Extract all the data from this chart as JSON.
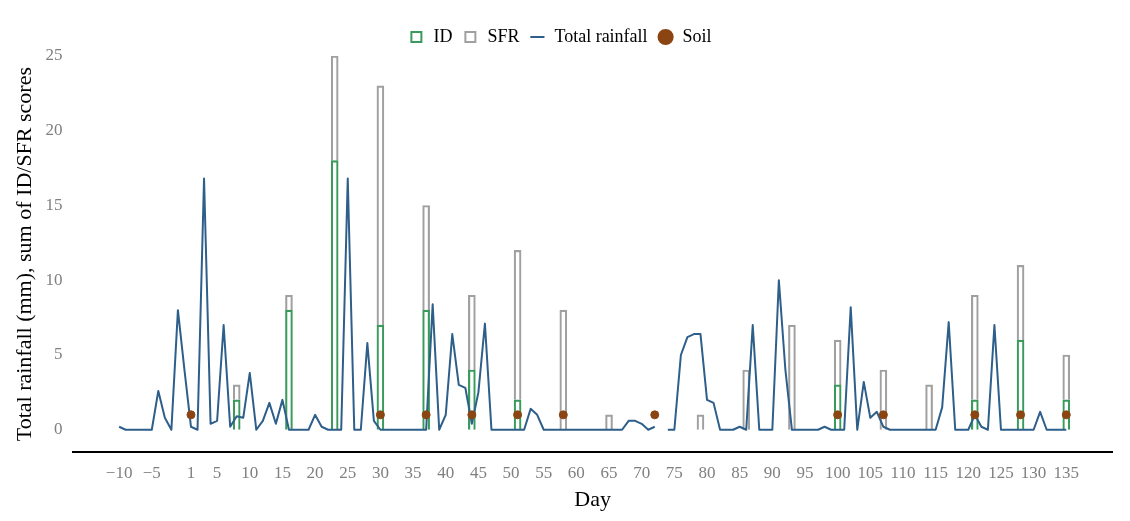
{
  "chart_data": {
    "type": "bar",
    "xlabel": "Day",
    "ylabel": "Total rainfall (mm), sum of ID/SFR scores",
    "stacked": true,
    "legend": "top",
    "grid": false,
    "xlim": [
      -17,
      142
    ],
    "ylim": [
      -1.5,
      25
    ],
    "xticks": [
      {
        "value": -10,
        "label": "−10"
      },
      {
        "value": -5,
        "label": "−5"
      },
      1,
      5,
      10,
      15,
      20,
      25,
      30,
      35,
      40,
      45,
      50,
      55,
      60,
      65,
      70,
      75,
      80,
      85,
      90,
      95,
      100,
      105,
      110,
      115,
      120,
      125,
      130,
      135
    ],
    "yticks": [
      0,
      5,
      10,
      15,
      20,
      25
    ],
    "series": [
      {
        "name": "ID",
        "color": "#3a9a5b",
        "x": [
          1,
          8,
          16,
          23,
          30,
          37,
          44,
          51,
          58,
          65,
          72,
          79,
          86,
          93,
          100,
          107,
          114,
          121,
          128,
          135
        ],
        "values": [
          0,
          2,
          8,
          18,
          7,
          8,
          4,
          2,
          0,
          0,
          0,
          0,
          0,
          0,
          3,
          0,
          0,
          2,
          6,
          2
        ]
      },
      {
        "name": "SFR",
        "color": "#a0a0a0",
        "x": [
          1,
          8,
          16,
          23,
          30,
          37,
          44,
          51,
          58,
          65,
          72,
          79,
          86,
          93,
          100,
          107,
          114,
          121,
          128,
          135
        ],
        "values": [
          0,
          1,
          1,
          7,
          16,
          7,
          5,
          10,
          8,
          1,
          0,
          1,
          4,
          7,
          3,
          4,
          3,
          7,
          5,
          3
        ]
      },
      {
        "name": "Total rainfall",
        "type": "line",
        "color": "#2e5f8a",
        "x": [
          -10,
          -9,
          -5,
          -4,
          -3,
          -2,
          -1,
          0,
          1,
          2,
          3,
          4,
          5,
          6,
          7,
          8,
          9,
          10,
          11,
          12,
          13,
          14,
          15,
          16,
          19,
          20,
          21,
          22,
          24,
          25,
          26,
          27,
          28,
          29,
          30,
          37,
          38,
          39,
          40,
          41,
          42,
          43,
          44,
          45,
          46,
          47,
          52,
          53,
          54,
          55,
          67,
          68,
          69,
          70,
          71,
          72,
          73,
          74,
          75,
          76,
          77,
          78,
          79,
          80,
          81,
          82,
          84,
          85,
          86,
          87,
          88,
          90,
          91,
          92,
          93,
          97,
          98,
          99,
          101,
          102,
          103,
          104,
          105,
          106,
          107,
          108,
          115,
          116,
          117,
          118,
          120,
          121,
          122,
          123,
          124,
          125,
          130,
          131,
          132,
          135
        ],
        "values": [
          0.2,
          0,
          0,
          2.6,
          0.8,
          0,
          8,
          4,
          0.2,
          0,
          16.8,
          0.4,
          0.6,
          7,
          0.2,
          0.9,
          0.8,
          3.8,
          0,
          0.6,
          1.8,
          0.4,
          2,
          0,
          0,
          1,
          0.2,
          0,
          0,
          16.8,
          0,
          0,
          5.8,
          0.6,
          0,
          0,
          8.4,
          0,
          1,
          6.4,
          3,
          2.8,
          0.4,
          2.5,
          7.1,
          0,
          0,
          1.4,
          1,
          0,
          0,
          0.6,
          0.6,
          0.4,
          0,
          0.2,
          null,
          0,
          0,
          5,
          6.2,
          6.4,
          6.4,
          2,
          1.8,
          0,
          0,
          0.2,
          0,
          7,
          0,
          0,
          10,
          4,
          0,
          0,
          0.2,
          0,
          0,
          8.2,
          0,
          3.2,
          0.8,
          1.2,
          0.2,
          0,
          0,
          1.5,
          7.2,
          0,
          0,
          1,
          0.2,
          0,
          7,
          0,
          0,
          1.2,
          0,
          0
        ]
      },
      {
        "name": "Soil",
        "type": "scatter",
        "color": "#8b4513",
        "marker": "circle",
        "x": [
          1,
          30,
          37,
          44,
          51,
          58,
          72,
          100,
          107,
          121,
          128,
          135
        ],
        "values": [
          1,
          1,
          1,
          1,
          1,
          1,
          1,
          1,
          1,
          1,
          1,
          1
        ]
      }
    ]
  }
}
